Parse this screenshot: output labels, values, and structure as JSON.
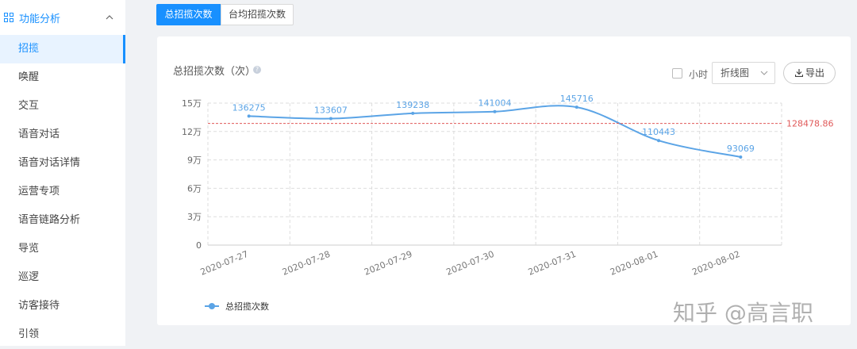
{
  "sidebar": {
    "section": "功能分析",
    "active": 0,
    "items": [
      "招揽",
      "唤醒",
      "交互",
      "语音对话",
      "语音对话详情",
      "运营专项",
      "语音链路分析",
      "导览",
      "巡逻",
      "访客接待",
      "引领"
    ]
  },
  "tabs": {
    "active": 0,
    "items": [
      "总招揽次数",
      "台均招揽次数"
    ]
  },
  "card": {
    "title": "总招揽次数（次）",
    "help": "?",
    "hour_toggle": "小时",
    "chart_select": "折线图",
    "export_button": "导出"
  },
  "chart_data": {
    "type": "line",
    "categories": [
      "2020-07-27",
      "2020-07-28",
      "2020-07-29",
      "2020-07-30",
      "2020-07-31",
      "2020-08-01",
      "2020-08-02"
    ],
    "series": [
      {
        "name": "总招揽次数",
        "color": "#5ba4e6",
        "values": [
          136275,
          133607,
          139238,
          141004,
          145716,
          110443,
          93069
        ]
      }
    ],
    "ylim": [
      0,
      150000
    ],
    "yticks": [
      0,
      {
        "value": 30000,
        "label": "3万"
      },
      {
        "value": 60000,
        "label": "6万"
      },
      {
        "value": 90000,
        "label": "9万"
      },
      {
        "value": 120000,
        "label": "12万"
      },
      {
        "value": 150000,
        "label": "15万"
      }
    ],
    "grid": true,
    "smooth": true,
    "data_labels": true,
    "reference_line": {
      "value": 128478.86,
      "color": "#e05a5a"
    },
    "legend": "bottom-left"
  },
  "watermark": "知乎 @高言职"
}
